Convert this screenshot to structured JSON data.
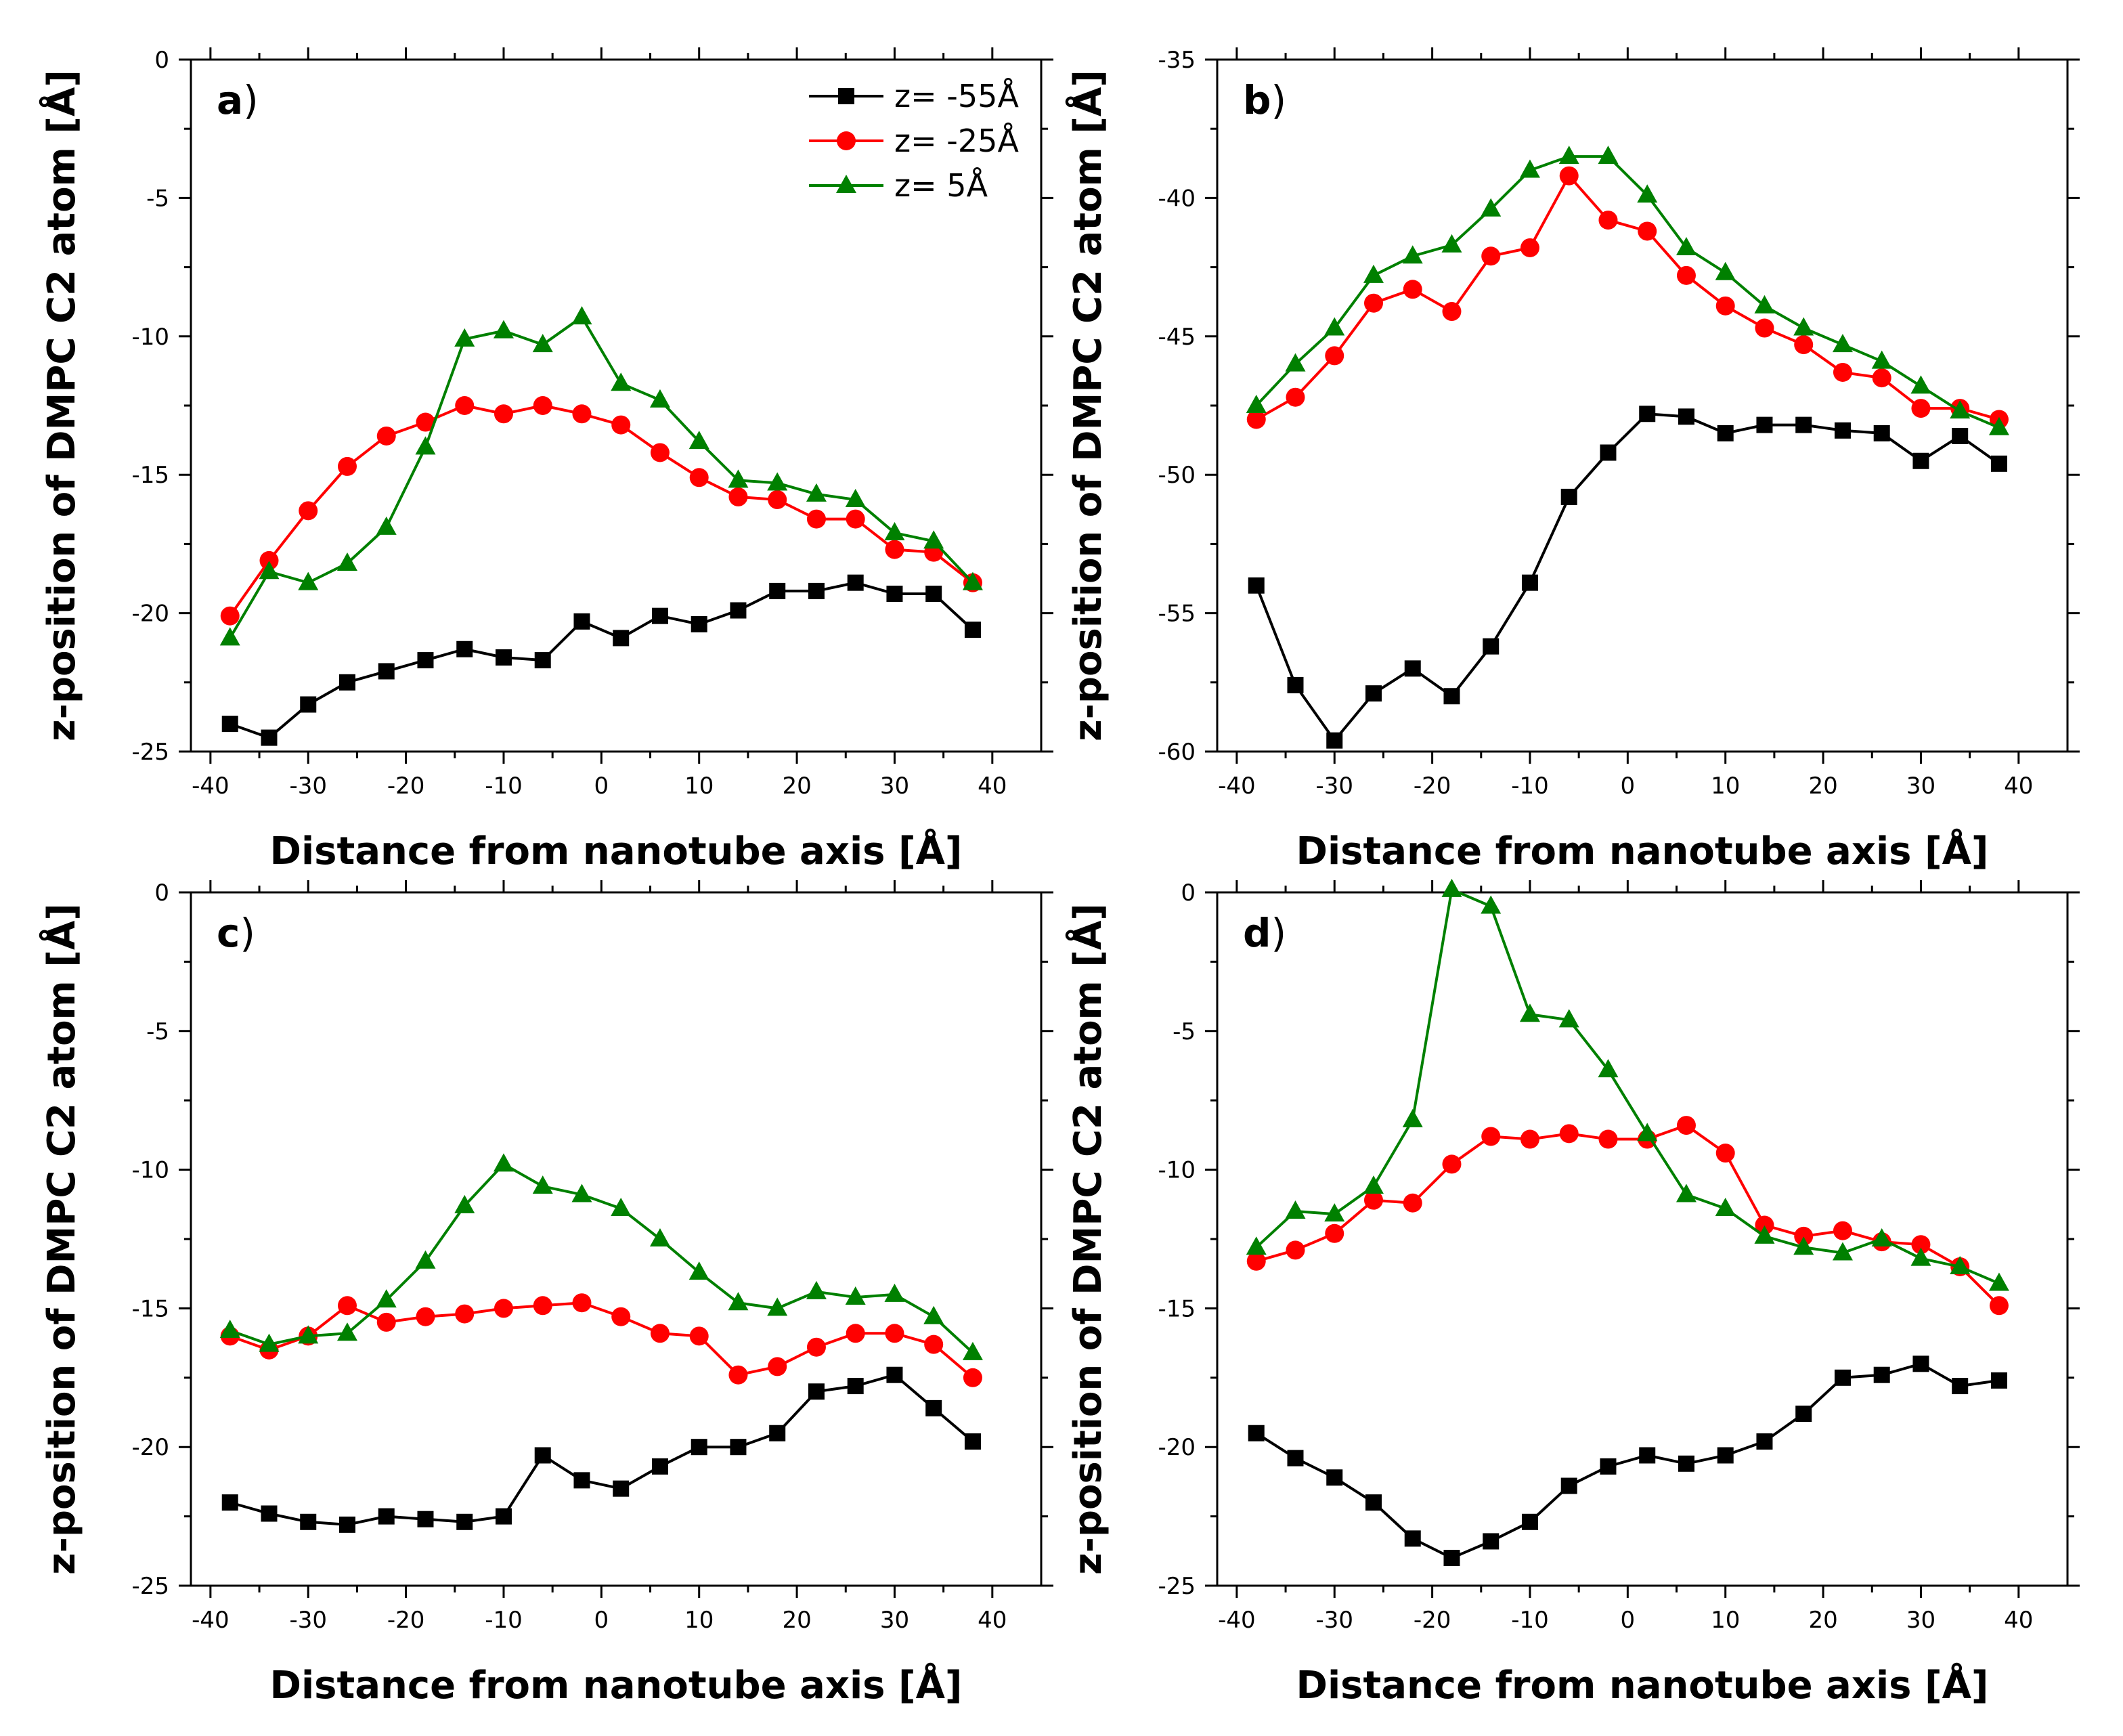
{
  "legend": [
    {
      "name": "z= -55Å",
      "color": "#000000",
      "marker": "square"
    },
    {
      "name": "z= -25Å",
      "color": "#ff0000",
      "marker": "circle"
    },
    {
      "name": "z= 5Å",
      "color": "#008000",
      "marker": "triangle"
    }
  ],
  "chart_data": [
    {
      "type": "line",
      "panel": "a",
      "title": "",
      "xlabel": "Distance from nanotube axis [Å]",
      "ylabel": "z-position of DMPC C2 atom [Å]",
      "xlim": [
        -42,
        45
      ],
      "ylim": [
        -25,
        0
      ],
      "xticks": [
        -40,
        -30,
        -20,
        -10,
        0,
        10,
        20,
        30,
        40
      ],
      "yticks": [
        -25,
        -20,
        -15,
        -10,
        -5,
        0
      ],
      "x": [
        -38,
        -34,
        -30,
        -26,
        -22,
        -18,
        -14,
        -10,
        -6,
        -2,
        2,
        6,
        10,
        14,
        18,
        22,
        26,
        30,
        34,
        38
      ],
      "series": [
        {
          "name": "z= -55Å",
          "values": [
            -24.0,
            -24.5,
            -23.3,
            -22.5,
            -22.1,
            -21.7,
            -21.3,
            -21.6,
            -21.7,
            -20.3,
            -20.9,
            -20.1,
            -20.4,
            -19.9,
            -19.2,
            -19.2,
            -18.9,
            -19.3,
            -19.3,
            -20.6
          ]
        },
        {
          "name": "z= -25Å",
          "values": [
            -20.1,
            -18.1,
            -16.3,
            -14.7,
            -13.6,
            -13.1,
            -12.5,
            -12.8,
            -12.5,
            -12.8,
            -13.2,
            -14.2,
            -15.1,
            -15.8,
            -15.9,
            -16.6,
            -16.6,
            -17.7,
            -17.8,
            -18.9
          ]
        },
        {
          "name": "z= 5Å",
          "values": [
            -20.9,
            -18.5,
            -18.9,
            -18.2,
            -16.9,
            -14.0,
            -10.1,
            -9.8,
            -10.3,
            -9.3,
            -11.7,
            -12.3,
            -13.8,
            -15.2,
            -15.3,
            -15.7,
            -15.9,
            -17.1,
            -17.4,
            -18.9
          ]
        }
      ]
    },
    {
      "type": "line",
      "panel": "b",
      "title": "",
      "xlabel": "Distance from nanotube axis [Å]",
      "ylabel": "z-position of DMPC C2 atom [Å]",
      "xlim": [
        -42,
        45
      ],
      "ylim": [
        -60,
        -35
      ],
      "xticks": [
        -40,
        -30,
        -20,
        -10,
        0,
        10,
        20,
        30,
        40
      ],
      "yticks": [
        -60,
        -55,
        -50,
        -45,
        -40,
        -35
      ],
      "x": [
        -38,
        -34,
        -30,
        -26,
        -22,
        -18,
        -14,
        -10,
        -6,
        -2,
        2,
        6,
        10,
        14,
        18,
        22,
        26,
        30,
        34,
        38
      ],
      "series": [
        {
          "name": "z= -55Å",
          "values": [
            -54.0,
            -57.6,
            -59.6,
            -57.9,
            -57.0,
            -58.0,
            -56.2,
            -53.9,
            -50.8,
            -49.2,
            -47.8,
            -47.9,
            -48.5,
            -48.2,
            -48.2,
            -48.4,
            -48.5,
            -49.5,
            -48.6,
            -49.6
          ]
        },
        {
          "name": "z= -25Å",
          "values": [
            -48.0,
            -47.2,
            -45.7,
            -43.8,
            -43.3,
            -44.1,
            -42.1,
            -41.8,
            -39.2,
            -40.8,
            -41.2,
            -42.8,
            -43.9,
            -44.7,
            -45.3,
            -46.3,
            -46.5,
            -47.6,
            -47.6,
            -48.0
          ]
        },
        {
          "name": "z= 5Å",
          "values": [
            -47.5,
            -46.0,
            -44.7,
            -42.8,
            -42.1,
            -41.7,
            -40.4,
            -39.0,
            -38.5,
            -38.5,
            -39.9,
            -41.8,
            -42.7,
            -43.9,
            -44.7,
            -45.3,
            -45.9,
            -46.8,
            -47.7,
            -48.3
          ]
        }
      ]
    },
    {
      "type": "line",
      "panel": "c",
      "title": "",
      "xlabel": "Distance from nanotube axis [Å]",
      "ylabel": "z-position of DMPC C2 atom [Å]",
      "xlim": [
        -42,
        45
      ],
      "ylim": [
        -25,
        0
      ],
      "xticks": [
        -40,
        -30,
        -20,
        -10,
        0,
        10,
        20,
        30,
        40
      ],
      "yticks": [
        -25,
        -20,
        -15,
        -10,
        -5,
        0
      ],
      "x": [
        -38,
        -34,
        -30,
        -26,
        -22,
        -18,
        -14,
        -10,
        -6,
        -2,
        2,
        6,
        10,
        14,
        18,
        22,
        26,
        30,
        34,
        38
      ],
      "series": [
        {
          "name": "z= -55Å",
          "values": [
            -22.0,
            -22.4,
            -22.7,
            -22.8,
            -22.5,
            -22.6,
            -22.7,
            -22.5,
            -20.3,
            -21.2,
            -21.5,
            -20.7,
            -20.0,
            -20.0,
            -19.5,
            -18.0,
            -17.8,
            -17.4,
            -18.6,
            -19.8
          ]
        },
        {
          "name": "z= -25Å",
          "values": [
            -16.0,
            -16.5,
            -16.0,
            -14.9,
            -15.5,
            -15.3,
            -15.2,
            -15.0,
            -14.9,
            -14.8,
            -15.3,
            -15.9,
            -16.0,
            -17.4,
            -17.1,
            -16.4,
            -15.9,
            -15.9,
            -16.3,
            -17.5
          ]
        },
        {
          "name": "z= 5Å",
          "values": [
            -15.8,
            -16.3,
            -16.0,
            -15.9,
            -14.7,
            -13.3,
            -11.3,
            -9.8,
            -10.6,
            -10.9,
            -11.4,
            -12.5,
            -13.7,
            -14.8,
            -15.0,
            -14.4,
            -14.6,
            -14.5,
            -15.3,
            -16.6
          ]
        }
      ]
    },
    {
      "type": "line",
      "panel": "d",
      "title": "",
      "xlabel": "Distance from nanotube axis [Å]",
      "ylabel": "z-position of DMPC C2 atom [Å]",
      "xlim": [
        -42,
        45
      ],
      "ylim": [
        -25,
        0
      ],
      "xticks": [
        -40,
        -30,
        -20,
        -10,
        0,
        10,
        20,
        30,
        40
      ],
      "yticks": [
        -25,
        -20,
        -15,
        -10,
        -5,
        0
      ],
      "x": [
        -38,
        -34,
        -30,
        -26,
        -22,
        -18,
        -14,
        -10,
        -6,
        -2,
        2,
        6,
        10,
        14,
        18,
        22,
        26,
        30,
        34,
        38
      ],
      "series": [
        {
          "name": "z= -55Å",
          "values": [
            -19.5,
            -20.4,
            -21.1,
            -22.0,
            -23.3,
            -24.0,
            -23.4,
            -22.7,
            -21.4,
            -20.7,
            -20.3,
            -20.6,
            -20.3,
            -19.8,
            -18.8,
            -17.5,
            -17.4,
            -17.0,
            -17.8,
            -17.6
          ]
        },
        {
          "name": "z= -25Å",
          "values": [
            -13.3,
            -12.9,
            -12.3,
            -11.1,
            -11.2,
            -9.8,
            -8.8,
            -8.9,
            -8.7,
            -8.9,
            -8.9,
            -8.4,
            -9.4,
            -12.0,
            -12.4,
            -12.2,
            -12.6,
            -12.7,
            -13.5,
            -14.9
          ]
        },
        {
          "name": "z= 5Å",
          "values": [
            -12.8,
            -11.5,
            -11.6,
            -10.6,
            -8.2,
            0.1,
            -0.5,
            -4.4,
            -4.6,
            -6.4,
            -8.7,
            -10.9,
            -11.4,
            -12.4,
            -12.8,
            -13.0,
            -12.5,
            -13.2,
            -13.5,
            -14.1
          ]
        }
      ]
    }
  ]
}
